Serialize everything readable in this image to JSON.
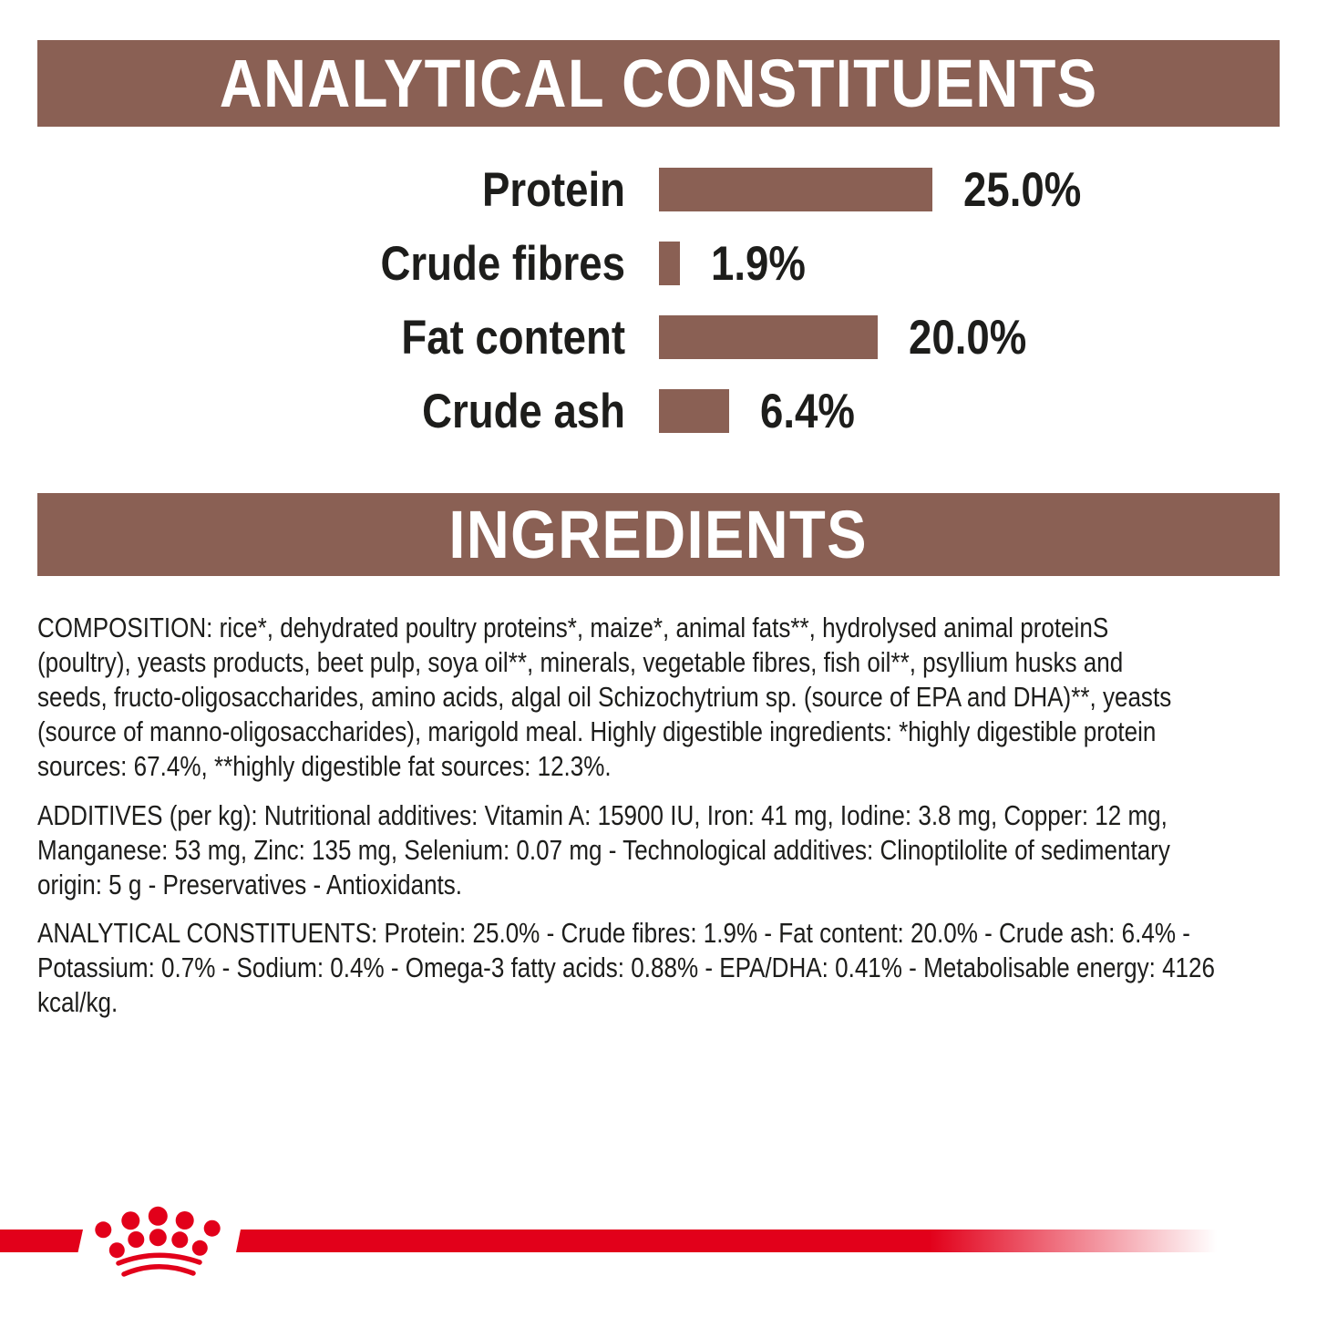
{
  "header_analytical": {
    "label": "ANALYTICAL CONSTITUENTS"
  },
  "header_ingredients": {
    "label": "INGREDIENTS"
  },
  "chart_data": {
    "type": "bar",
    "orientation": "horizontal",
    "title": "ANALYTICAL CONSTITUENTS",
    "categories": [
      "Protein",
      "Crude fibres",
      "Fat content",
      "Crude ash"
    ],
    "values": [
      25.0,
      1.9,
      20.0,
      6.4
    ],
    "value_labels": [
      "25.0%",
      "1.9%",
      "20.0%",
      "6.4%"
    ],
    "unit": "percent",
    "xlim": [
      0,
      25
    ],
    "bar_color": "#8a6054",
    "grid": false,
    "legend": false
  },
  "paragraphs": {
    "composition": {
      "lines": [
        "COMPOSITION: rice*, dehydrated poultry proteins*, maize*, animal fats**, hydrolysed animal proteinS",
        "(poultry), yeasts products, beet pulp, soya oil**, minerals, vegetable fibres, fish oil**, psyllium husks and",
        "seeds, fructo-oligosaccharides, amino acids, algal oil Schizochytrium sp. (source of EPA and DHA)**, yeasts",
        "(source of manno-oligosaccharides), marigold meal. Highly digestible ingredients: *highly digestible protein",
        "sources: 67.4%, **highly digestible fat sources: 12.3%."
      ]
    },
    "additives": {
      "lines": [
        "ADDITIVES (per kg): Nutritional additives: Vitamin A: 15900 IU, Iron: 41 mg, Iodine: 3.8 mg, Copper: 12 mg,",
        "Manganese: 53 mg, Zinc: 135 mg, Selenium: 0.07 mg - Technological additives: Clinoptilolite of sedimentary",
        "origin: 5 g - Preservatives - Antioxidants."
      ]
    },
    "analytical_constituents": {
      "lines": [
        "ANALYTICAL CONSTITUENTS: Protein: 25.0% - Crude fibres: 1.9% - Fat content: 20.0% - Crude ash: 6.4% -",
        "Potassium: 0.7% - Sodium: 0.4% - Omega-3 fatty acids: 0.88% - EPA/DHA: 0.41% - Metabolisable energy: 4126",
        "kcal/kg."
      ]
    }
  },
  "footer": {
    "brand_logo": "royal-canin-crown-icon",
    "stripe_color": "#e2001a"
  },
  "colors": {
    "section_brown": "#8a6054",
    "brand_red": "#e2001a",
    "text_dark": "#1d1d1b",
    "header_text": "#ffffff"
  }
}
